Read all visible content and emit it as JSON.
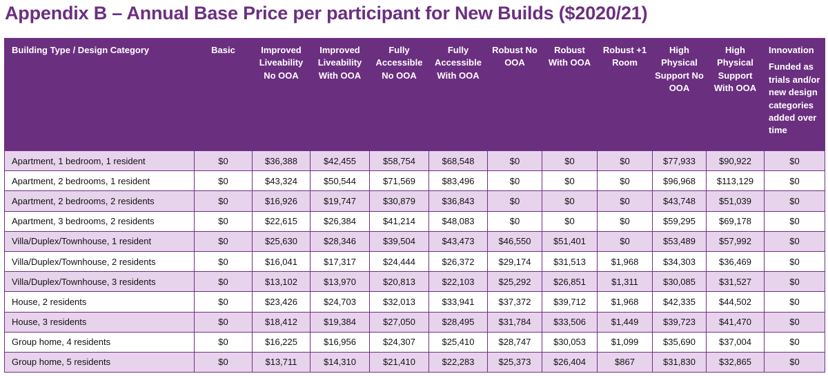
{
  "title": "Appendix B – Annual Base Price per participant for New Builds ($2020/21)",
  "colors": {
    "header_bg": "#6b2f80",
    "row_alt": "#e8d3ed",
    "title": "#6b2f80"
  },
  "table": {
    "headers": [
      "Building Type / Design Category",
      "Basic",
      "Improved Liveability No OOA",
      "Improved Liveability With OOA",
      "Fully Accessible No OOA",
      "Fully Accessible With OOA",
      "Robust No OOA",
      "Robust With OOA",
      "Robust +1 Room",
      "High Physical Support No OOA",
      "High Physical Support With OOA",
      "Innovation"
    ],
    "innovation_note": "Funded as trials and/or new design categories added over time",
    "rows": [
      [
        "Apartment, 1 bedroom, 1 resident",
        "$0",
        "$36,388",
        "$42,455",
        "$58,754",
        "$68,548",
        "$0",
        "$0",
        "$0",
        "$77,933",
        "$90,922",
        "$0"
      ],
      [
        "Apartment, 2 bedrooms, 1 resident",
        "$0",
        "$43,324",
        "$50,544",
        "$71,569",
        "$83,496",
        "$0",
        "$0",
        "$0",
        "$96,968",
        "$113,129",
        "$0"
      ],
      [
        "Apartment, 2 bedrooms, 2 residents",
        "$0",
        "$16,926",
        "$19,747",
        "$30,879",
        "$36,843",
        "$0",
        "$0",
        "$0",
        "$43,748",
        "$51,039",
        "$0"
      ],
      [
        "Apartment, 3 bedrooms, 2 residents",
        "$0",
        "$22,615",
        "$26,384",
        "$41,214",
        "$48,083",
        "$0",
        "$0",
        "$0",
        "$59,295",
        "$69,178",
        "$0"
      ],
      [
        "Villa/Duplex/Townhouse, 1 resident",
        "$0",
        "$25,630",
        "$28,346",
        "$39,504",
        "$43,473",
        "$46,550",
        "$51,401",
        "$0",
        "$53,489",
        "$57,992",
        "$0"
      ],
      [
        "Villa/Duplex/Townhouse, 2 residents",
        "$0",
        "$16,041",
        "$17,317",
        "$24,444",
        "$26,372",
        "$29,174",
        "$31,513",
        "$1,968",
        "$34,303",
        "$36,469",
        "$0"
      ],
      [
        "Villa/Duplex/Townhouse, 3 residents",
        "$0",
        "$13,102",
        "$13,970",
        "$20,813",
        "$22,103",
        "$25,292",
        "$26,851",
        "$1,311",
        "$30,085",
        "$31,527",
        "$0"
      ],
      [
        "House, 2 residents",
        "$0",
        "$23,426",
        "$24,703",
        "$32,013",
        "$33,941",
        "$37,372",
        "$39,712",
        "$1,968",
        "$42,335",
        "$44,502",
        "$0"
      ],
      [
        "House, 3 residents",
        "$0",
        "$18,412",
        "$19,384",
        "$27,050",
        "$28,495",
        "$31,784",
        "$33,506",
        "$1,449",
        "$39,723",
        "$41,470",
        "$0"
      ],
      [
        "Group home, 4 residents",
        "$0",
        "$16,225",
        "$16,956",
        "$24,307",
        "$25,410",
        "$28,747",
        "$30,053",
        "$1,099",
        "$35,690",
        "$37,004",
        "$0"
      ],
      [
        "Group home, 5 residents",
        "$0",
        "$13,711",
        "$14,310",
        "$21,410",
        "$22,283",
        "$25,373",
        "$26,404",
        "$867",
        "$31,830",
        "$32,865",
        "$0"
      ]
    ]
  }
}
